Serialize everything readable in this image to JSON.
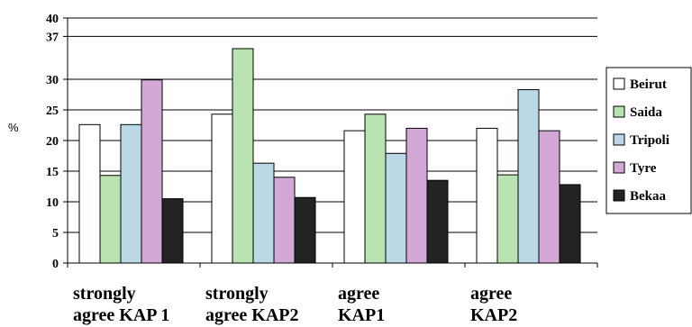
{
  "chart_data": {
    "type": "bar",
    "ylabel": "%",
    "ylim": [
      0,
      40
    ],
    "yticks": [
      0,
      5,
      10,
      15,
      20,
      25,
      30,
      37,
      40
    ],
    "grid": true,
    "legend_position": "right",
    "categories": [
      [
        "strongly",
        "agree KAP 1"
      ],
      [
        "strongly",
        "agree KAP2"
      ],
      [
        "agree",
        "KAP1"
      ],
      [
        "agree",
        "KAP2"
      ]
    ],
    "series": [
      {
        "name": "Beirut",
        "color": "#ffffff",
        "values": [
          22.6,
          24.3,
          21.6,
          22.0
        ]
      },
      {
        "name": "Saida",
        "color": "#b8e3b0",
        "values": [
          14.3,
          35.0,
          24.3,
          14.4
        ]
      },
      {
        "name": "Tripoli",
        "color": "#bcd8e6",
        "values": [
          22.6,
          16.3,
          17.9,
          28.3
        ]
      },
      {
        "name": "Tyre",
        "color": "#d4a8d6",
        "values": [
          29.9,
          14.0,
          22.0,
          21.6
        ]
      },
      {
        "name": "Bekaa",
        "color": "#232323",
        "values": [
          10.5,
          10.7,
          13.5,
          12.8
        ]
      }
    ]
  }
}
